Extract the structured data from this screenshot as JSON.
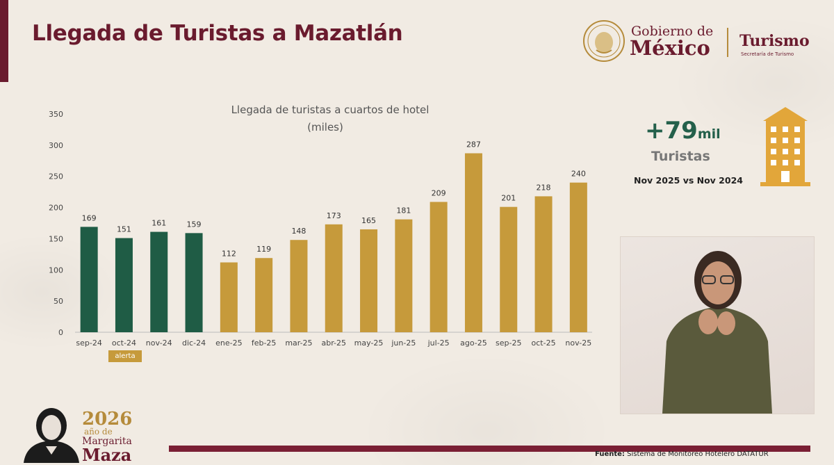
{
  "header": {
    "title": "Llegada de Turistas a Mazatlán",
    "gob_line1": "Gobierno de",
    "gob_line2": "México",
    "turismo": "Turismo",
    "turismo_sub": "Secretaría de Turismo"
  },
  "colors": {
    "brand": "#6a1b2e",
    "gold": "#c69a3b",
    "green": "#1f5c45"
  },
  "chart_data": {
    "type": "bar",
    "title": "Llegada de turistas a cuartos de hotel",
    "subtitle": "(miles)",
    "xlabel": "",
    "ylabel": "",
    "ylim": [
      0,
      350
    ],
    "yticks": [
      0,
      50,
      100,
      150,
      200,
      250,
      300,
      350
    ],
    "grid": false,
    "categories": [
      "sep-24",
      "oct-24",
      "nov-24",
      "dic-24",
      "ene-25",
      "feb-25",
      "mar-25",
      "abr-25",
      "may-25",
      "jun-25",
      "jul-25",
      "ago-25",
      "sep-25",
      "oct-25",
      "nov-25"
    ],
    "values": [
      169,
      151,
      161,
      159,
      112,
      119,
      148,
      173,
      165,
      181,
      209,
      287,
      201,
      218,
      240
    ],
    "bar_colors": [
      "#1f5c45",
      "#1f5c45",
      "#1f5c45",
      "#1f5c45",
      "#c69a3b",
      "#c69a3b",
      "#c69a3b",
      "#c69a3b",
      "#c69a3b",
      "#c69a3b",
      "#c69a3b",
      "#c69a3b",
      "#c69a3b",
      "#c69a3b",
      "#c69a3b"
    ],
    "annotations": [
      {
        "category": "oct-24",
        "text": "alerta"
      }
    ]
  },
  "kpi": {
    "value": "+79",
    "unit": "mil",
    "label": "Turistas",
    "compare": "Nov 2025 vs Nov 2024",
    "icon": "building-icon"
  },
  "footer": {
    "source_label": "Fuente:",
    "source_text": "Sistema de Monitoreo Hotelero DATATUR",
    "year": "2026",
    "year_sub": "año de",
    "name_line1": "Margarita",
    "name_line2": "Maza"
  }
}
